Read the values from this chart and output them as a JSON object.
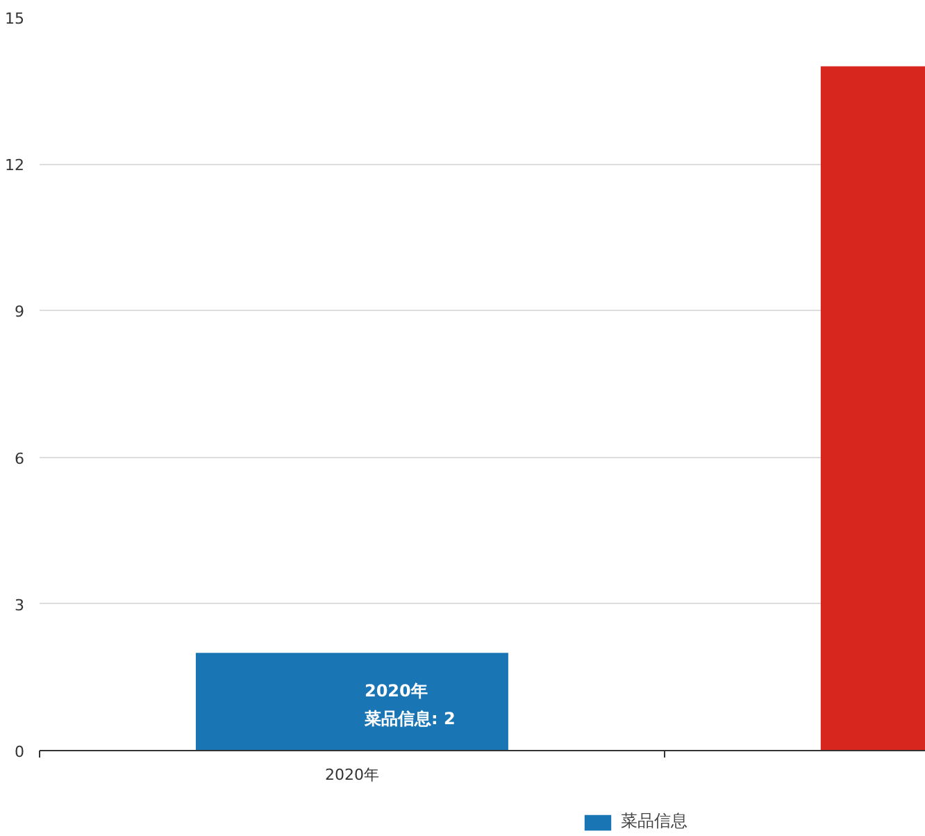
{
  "chart_data": {
    "type": "bar",
    "categories": [
      "2020年",
      null
    ],
    "series": [
      {
        "name": "菜品信息",
        "color": "#1a75b4",
        "colors": [
          null,
          "#d7261e"
        ],
        "values": [
          2,
          14
        ]
      }
    ],
    "ylim": [
      0,
      15
    ],
    "yticks": [
      0,
      3,
      6,
      9,
      12,
      15
    ],
    "grid": "y",
    "legend": "bottom",
    "annotations": [
      "2020年",
      "菜品信息: 2"
    ]
  }
}
